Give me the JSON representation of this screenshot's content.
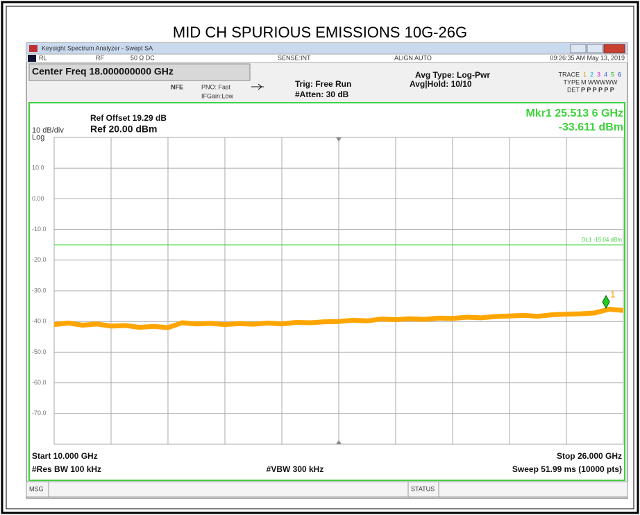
{
  "title": "MID CH SPURIOUS EMISSIONS 10G-26G",
  "window": {
    "title": "Keysight Spectrum Analyzer - Swept SA",
    "status": [
      "RL",
      "RF",
      "50 Ω  DC",
      "SENSE:INT",
      "ALIGN AUTO",
      "09:26:35 AM May 13, 2019"
    ]
  },
  "header": {
    "center_freq": "Center Freq 18.000000000 GHz",
    "nfe": "NFE",
    "pno": "PNO: Fast",
    "ifgain": "IFGain:Low",
    "trig": "Trig: Free Run",
    "atten": "#Atten: 30 dB",
    "avg_type": "Avg Type: Log-Pwr",
    "avg_hold": "Avg|Hold: 10/10",
    "trace_label": "TRACE",
    "trace_numbers": [
      "1",
      "2",
      "3",
      "4",
      "5",
      "6"
    ],
    "type_label": "TYPE",
    "type_value": "M WWWWW",
    "det_label": "DET",
    "det_value": "P P P P P P"
  },
  "chart_data": {
    "type": "line",
    "ref_offset": "Ref Offset 19.29 dB",
    "scale": "10 dB/div",
    "ref_level": "Ref 20.00 dBm",
    "scale_type": "Log",
    "marker": {
      "label": "Mkr1 25.513 6 GHz",
      "value_label": "-33.611 dBm",
      "name": "1",
      "x": 25.5136,
      "y": -33.611
    },
    "display_line": {
      "value": -15.04,
      "label": "DL1 -15.04 dBm"
    },
    "xlim": [
      10,
      26
    ],
    "ylim": [
      -80,
      20
    ],
    "xticks": [
      10,
      11.6,
      13.2,
      14.8,
      16.4,
      18,
      19.6,
      21.2,
      22.8,
      24.4,
      26
    ],
    "yticks": [
      {
        "value": 10,
        "label": "10.0"
      },
      {
        "value": 0,
        "label": "0.00"
      },
      {
        "value": -10,
        "label": "-10.0"
      },
      {
        "value": -20,
        "label": "-20.0"
      },
      {
        "value": -30,
        "label": "-30.0"
      },
      {
        "value": -40,
        "label": "-40.0"
      },
      {
        "value": -50,
        "label": "-50.0"
      },
      {
        "value": -60,
        "label": "-60.0"
      },
      {
        "value": -70,
        "label": "-70.0"
      }
    ],
    "grid": true,
    "series": [
      {
        "color": "#ffa500",
        "x": [
          10.0,
          10.4,
          10.8,
          11.2,
          11.6,
          12.0,
          12.4,
          12.8,
          13.2,
          13.6,
          14.0,
          14.4,
          14.8,
          15.2,
          15.6,
          16.0,
          16.4,
          16.8,
          17.2,
          17.6,
          18.0,
          18.4,
          18.8,
          19.2,
          19.6,
          20.0,
          20.4,
          20.8,
          21.2,
          21.6,
          22.0,
          22.4,
          22.8,
          23.2,
          23.6,
          24.0,
          24.4,
          24.8,
          25.2,
          25.6,
          26.0
        ],
        "values": [
          -41.0,
          -40.5,
          -41.2,
          -40.8,
          -41.5,
          -41.3,
          -41.9,
          -41.6,
          -42.0,
          -40.4,
          -40.8,
          -40.6,
          -41.0,
          -40.7,
          -40.9,
          -40.5,
          -40.8,
          -40.3,
          -40.4,
          -40.1,
          -40.0,
          -39.6,
          -39.8,
          -39.2,
          -39.4,
          -39.1,
          -39.3,
          -38.9,
          -39.0,
          -38.6,
          -38.8,
          -38.4,
          -38.2,
          -38.0,
          -38.3,
          -37.8,
          -37.6,
          -37.5,
          -37.2,
          -36.0,
          -36.4
        ]
      }
    ],
    "start": "Start 10.000 GHz",
    "stop": "Stop 26.000 GHz",
    "rbw": "#Res BW 100 kHz",
    "vbw": "#VBW 300 kHz",
    "sweep": "Sweep  51.99 ms (10000 pts)"
  },
  "footer": {
    "msg": "MSG",
    "status": "STATUS"
  }
}
